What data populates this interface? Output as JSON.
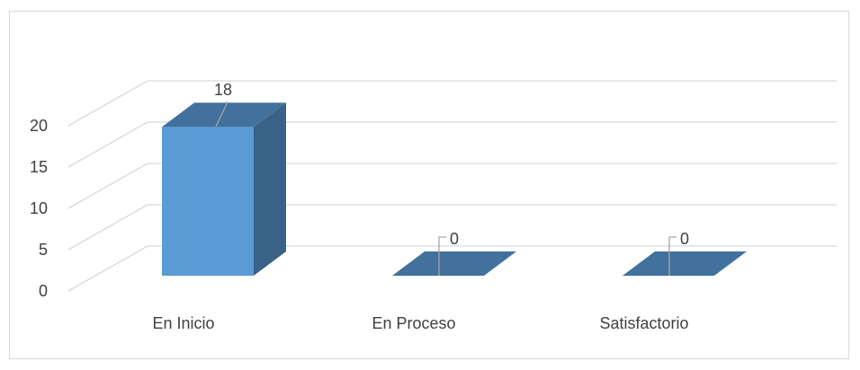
{
  "chart_data": {
    "type": "bar",
    "style": "3d-column",
    "categories": [
      "En Inicio",
      "En Proceso",
      "Satisfactorio"
    ],
    "values": [
      18,
      0,
      0
    ],
    "data_labels": [
      "18",
      "0",
      "0"
    ],
    "title": "",
    "xlabel": "",
    "ylabel": "",
    "ylim": [
      0,
      20
    ],
    "yticks": [
      0,
      5,
      10,
      15,
      20
    ],
    "grid": true,
    "legend": "none",
    "colors": {
      "bar_front": "#5b9bd5",
      "bar_top": "#41719c",
      "bar_side": "#3a6287",
      "gridline": "#d9d9d9",
      "text": "#404040",
      "leader_line": "#a6a6a6"
    }
  }
}
